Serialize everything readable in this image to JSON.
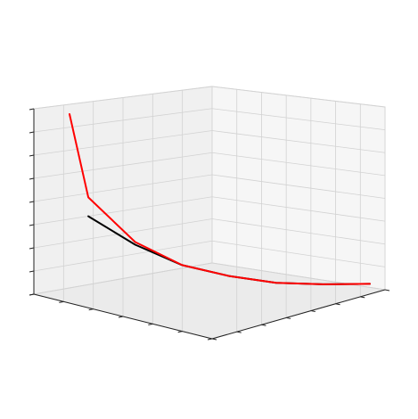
{
  "chart_data": {
    "type": "line",
    "projection": "3d",
    "title": "",
    "xlabel": "",
    "ylabel": "",
    "zlabel": "",
    "grid": true,
    "legend": "none",
    "series": [
      {
        "color": "#000000",
        "points": [
          [
            1,
            2.8
          ],
          [
            2,
            1.7
          ],
          [
            3,
            0.9
          ],
          [
            4,
            0.45
          ],
          [
            5,
            0.15
          ],
          [
            6,
            0.05
          ],
          [
            7,
            0.02
          ]
        ]
      },
      {
        "color": "#ff0000",
        "points": [
          [
            0.6,
            6.6
          ],
          [
            1,
            3.5
          ],
          [
            2,
            1.8
          ],
          [
            3,
            0.9
          ],
          [
            4,
            0.45
          ],
          [
            5,
            0.15
          ],
          [
            6,
            0.05
          ],
          [
            7,
            0.02
          ]
        ]
      }
    ]
  }
}
